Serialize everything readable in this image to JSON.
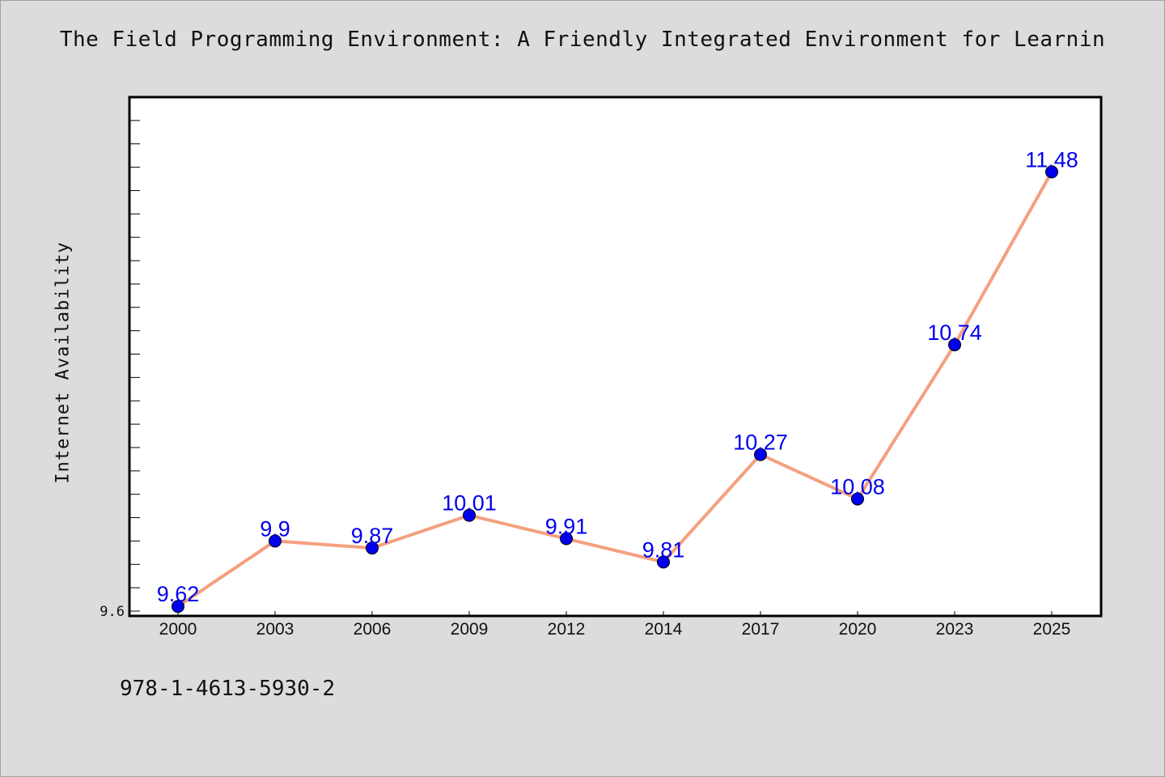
{
  "title": "The Field Programming Environment: A Friendly Integrated Environment for Learnin",
  "footer": "978-1-4613-5930-2",
  "chart_data": {
    "type": "line",
    "title": "The Field Programming Environment: A Friendly Integrated Environment for Learnin",
    "xlabel": "",
    "ylabel": "Internet Availability",
    "categories": [
      "2000",
      "2003",
      "2006",
      "2009",
      "2012",
      "2014",
      "2017",
      "2020",
      "2023",
      "2025"
    ],
    "series": [
      {
        "values": [
          9.62,
          9.9,
          9.87,
          10.01,
          9.91,
          9.81,
          10.27,
          10.08,
          10.74,
          11.48
        ],
        "labels": [
          "9.62",
          "9.9",
          "9.87",
          "10.01",
          "9.91",
          "9.81",
          "10.27",
          "10.08",
          "10.74",
          "11.48"
        ]
      }
    ],
    "ylim": [
      9.6,
      11.8
    ],
    "y_tick_labels": [
      "9.6"
    ],
    "grid": false,
    "legend": "none",
    "colors": {
      "line": "#f4a07f",
      "marker": "#0000ee",
      "label": "#0000ee",
      "background": "#dcdcdc",
      "plot_background": "#ffffff"
    }
  }
}
